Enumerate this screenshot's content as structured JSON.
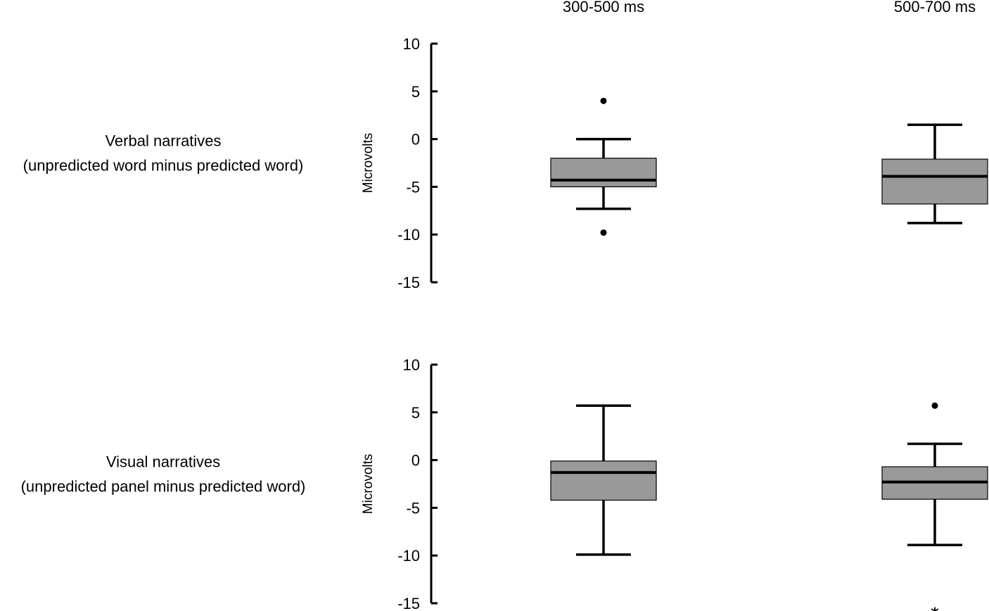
{
  "chart_data": {
    "type": "box",
    "column_titles": [
      "300-500 ms",
      "500-700 ms"
    ],
    "y_ticks": [
      10,
      5,
      0,
      -5,
      -10,
      -15
    ],
    "ylim": [
      -15,
      10
    ],
    "panels": [
      {
        "row_label": [
          "Verbal narratives",
          "(unpredicted word minus predicted word)"
        ],
        "ylabel": "Microvolts",
        "boxes": [
          {
            "category": "300-500 ms",
            "whisker_low": -7.3,
            "q1": -5.0,
            "median": -4.3,
            "q3": -2.0,
            "whisker_high": 0.0,
            "outliers": [
              {
                "value": 4.0,
                "marker": "dot"
              },
              {
                "value": -9.8,
                "marker": "dot"
              }
            ]
          },
          {
            "category": "500-700 ms",
            "whisker_low": -8.8,
            "q1": -6.8,
            "median": -3.9,
            "q3": -2.1,
            "whisker_high": 1.5,
            "outliers": []
          }
        ]
      },
      {
        "row_label": [
          "Visual narratives",
          "(unpredicted panel minus predicted word)"
        ],
        "ylabel": "Microvolts",
        "boxes": [
          {
            "category": "300-500 ms",
            "whisker_low": -9.9,
            "q1": -4.2,
            "median": -1.3,
            "q3": -0.1,
            "whisker_high": 5.7,
            "outliers": []
          },
          {
            "category": "500-700 ms",
            "whisker_low": -8.9,
            "q1": -4.1,
            "median": -2.3,
            "q3": -0.7,
            "whisker_high": 1.7,
            "outliers": [
              {
                "value": 5.7,
                "marker": "dot"
              },
              {
                "value": -15.3,
                "marker": "star",
                "symbol": "*"
              }
            ]
          }
        ]
      }
    ],
    "grid": false,
    "legend": "none"
  }
}
